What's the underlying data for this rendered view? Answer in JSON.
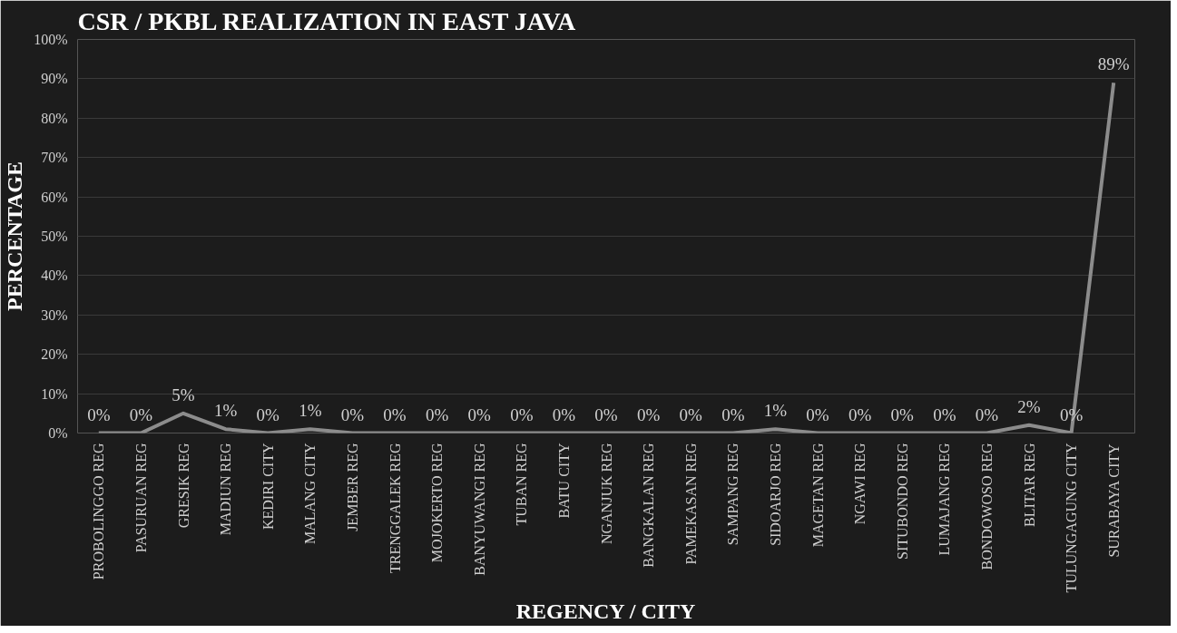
{
  "chart_data": {
    "type": "line",
    "title": "CSR / PKBL REALIZATION IN EAST JAVA",
    "xlabel": "REGENCY / CITY",
    "ylabel": "PERCENTAGE",
    "categories": [
      "PROBOLINGGO REG",
      "PASURUAN REG",
      "GRESIK REG",
      "MADIUN REG",
      "KEDIRI CITY",
      "MALANG CITY",
      "JEMBER REG",
      "TRENGGALEK REG",
      "MOJOKERTO REG",
      "BANYUWANGI REG",
      "TUBAN REG",
      "BATU CITY",
      "NGANJUK REG",
      "BANGKALAN REG",
      "PAMEKASAN REG",
      "SAMPANG REG",
      "SIDOARJO REG",
      "MAGETAN REG",
      "NGAWI REG",
      "SITUBONDO REG",
      "LUMAJANG REG",
      "BONDOWOSO REG",
      "BLITAR REG",
      "TULUNGAGUNG CITY",
      "SURABAYA CITY"
    ],
    "series": [
      {
        "color": "#8c8c8c",
        "values": [
          0,
          0,
          5,
          1,
          0,
          1,
          0,
          0,
          0,
          0,
          0,
          0,
          0,
          0,
          0,
          0,
          1,
          0,
          0,
          0,
          0,
          0,
          2,
          0,
          89
        ],
        "value_labels": [
          "0%",
          "0%",
          "5%",
          "1%",
          "0%",
          "1%",
          "0%",
          "0%",
          "0%",
          "0%",
          "0%",
          "0%",
          "0%",
          "0%",
          "0%",
          "0%",
          "1%",
          "0%",
          "0%",
          "0%",
          "0%",
          "0%",
          "2%",
          "0%",
          "89%"
        ]
      }
    ],
    "ylim": [
      0,
      100
    ],
    "yticks": [
      {
        "value": 0,
        "label": "0%"
      },
      {
        "value": 10,
        "label": "10%"
      },
      {
        "value": 20,
        "label": "20%"
      },
      {
        "value": 30,
        "label": "30%"
      },
      {
        "value": 40,
        "label": "40%"
      },
      {
        "value": 50,
        "label": "50%"
      },
      {
        "value": 60,
        "label": "60%"
      },
      {
        "value": 70,
        "label": "70%"
      },
      {
        "value": 80,
        "label": "80%"
      },
      {
        "value": 90,
        "label": "90%"
      },
      {
        "value": 100,
        "label": "100%"
      }
    ],
    "grid": "y",
    "marker": "none",
    "line_style": "solid"
  }
}
